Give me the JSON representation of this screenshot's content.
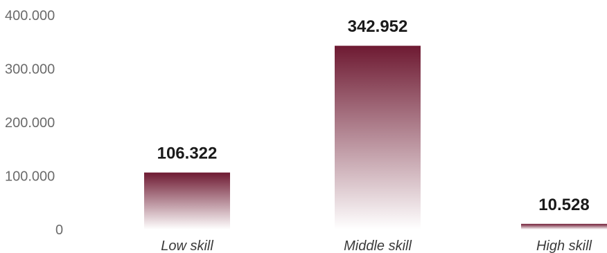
{
  "chart_data": {
    "type": "bar",
    "categories": [
      "Low skill",
      "Middle skill",
      "High skill"
    ],
    "values": [
      106322,
      342952,
      10528
    ],
    "value_labels": [
      "106.322",
      "342.952",
      "10.528"
    ],
    "ylim": [
      0,
      400000
    ],
    "yticks": [
      0,
      100000,
      200000,
      300000,
      400000
    ],
    "ytick_labels": [
      "0",
      "100.000",
      "200.000",
      "300.000",
      "400.000"
    ],
    "title": "",
    "xlabel": "",
    "ylabel": "",
    "grid": false,
    "legend": "none",
    "bar_color_top": "#6e1a32",
    "bar_color_bottom": "#ffffff"
  }
}
